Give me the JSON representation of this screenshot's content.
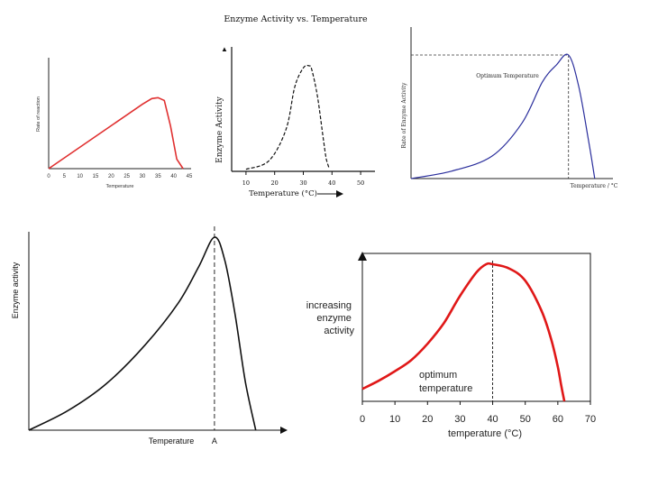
{
  "chart_data": [
    {
      "id": "c1",
      "type": "line",
      "title": "",
      "xlabel": "Temperature",
      "ylabel": "Rate of reaction",
      "color": "#e03030",
      "xticks": [
        "0",
        "5",
        "10",
        "15",
        "20",
        "25",
        "30",
        "35",
        "40",
        "45"
      ],
      "xlim": [
        0,
        45
      ],
      "ylim": [
        0,
        100
      ],
      "x": [
        0,
        30,
        33,
        35,
        37,
        39,
        41,
        43
      ],
      "y": [
        0,
        68,
        74,
        75,
        72,
        45,
        10,
        0
      ]
    },
    {
      "id": "c2",
      "type": "line",
      "title": "Enzyme Activity vs. Temperature",
      "xlabel": "Temperature (°C)",
      "ylabel": "Enzyme Activity",
      "color": "#111111",
      "xticks": [
        "10",
        "20",
        "30",
        "40",
        "50"
      ],
      "xlim": [
        5,
        55
      ],
      "ylim": [
        0,
        100
      ],
      "x": [
        10,
        18,
        24,
        27,
        30,
        32,
        33,
        35,
        37,
        38,
        39
      ],
      "y": [
        2,
        10,
        40,
        80,
        98,
        100,
        96,
        70,
        30,
        12,
        3
      ]
    },
    {
      "id": "c3",
      "type": "line",
      "title": "",
      "xlabel": "Temperature / °C",
      "ylabel": "Rate of Enzyme Activity",
      "annotation": "Optimum Temperature",
      "color": "#2a2e9c",
      "xlim": [
        0,
        100
      ],
      "ylim": [
        0,
        100
      ],
      "optimum_x": 78,
      "x": [
        0,
        20,
        40,
        55,
        65,
        72,
        78,
        83,
        88,
        91
      ],
      "y": [
        0,
        6,
        18,
        45,
        78,
        92,
        100,
        75,
        30,
        0
      ]
    },
    {
      "id": "c4",
      "type": "line",
      "title": "",
      "xlabel": "Temperature",
      "ylabel": "Enzyme activity",
      "marker_label": "A",
      "color": "#111111",
      "xlim": [
        0,
        100
      ],
      "ylim": [
        0,
        100
      ],
      "optimum_x": 72,
      "x": [
        0,
        15,
        30,
        45,
        58,
        66,
        72,
        76,
        80,
        84,
        88
      ],
      "y": [
        0,
        10,
        24,
        44,
        66,
        85,
        100,
        88,
        60,
        25,
        0
      ]
    },
    {
      "id": "c5",
      "type": "line",
      "title": "",
      "xlabel": "temperature (°C)",
      "ylabel": "increasing enzyme activity",
      "ylabel_lines": [
        "increasing",
        "enzyme",
        "activity"
      ],
      "annotation_lines": [
        "optimum",
        "temperature"
      ],
      "color": "#e01818",
      "xticks": [
        "0",
        "10",
        "20",
        "30",
        "40",
        "50",
        "60",
        "70"
      ],
      "xlim": [
        0,
        70
      ],
      "ylim": [
        0,
        100
      ],
      "optimum_x": 40,
      "x": [
        0,
        5,
        10,
        15,
        20,
        25,
        30,
        35,
        38,
        40,
        45,
        50,
        55,
        58,
        60,
        61,
        62
      ],
      "y": [
        9,
        15,
        22,
        30,
        42,
        57,
        77,
        94,
        100,
        100,
        97,
        88,
        66,
        45,
        25,
        12,
        0
      ]
    }
  ]
}
